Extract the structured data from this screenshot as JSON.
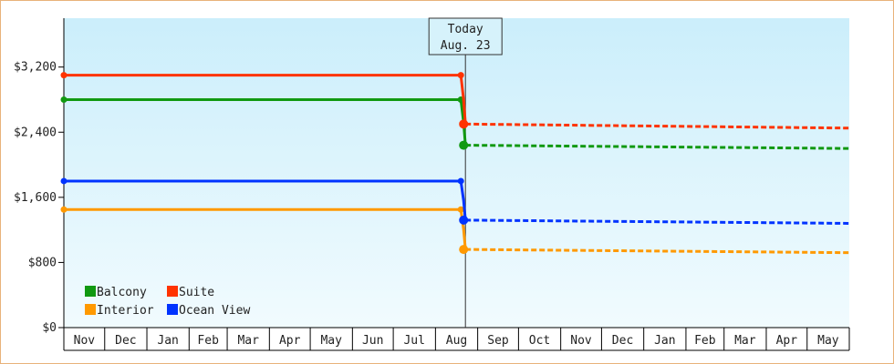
{
  "chart_data": {
    "type": "line",
    "title": "",
    "xlabel": "",
    "ylabel": "",
    "ylim": [
      0,
      3800
    ],
    "y_ticks": [
      "$0",
      "$800",
      "$1,600",
      "$2,400",
      "$3,200"
    ],
    "y_tick_values": [
      0,
      800,
      1600,
      2400,
      3200
    ],
    "x_months": [
      "Nov",
      "Dec",
      "Jan",
      "Feb",
      "Mar",
      "Apr",
      "May",
      "Jun",
      "Jul",
      "Aug",
      "Sep",
      "Oct",
      "Nov",
      "Dec",
      "Jan",
      "Feb",
      "Mar",
      "Apr",
      "May"
    ],
    "x_range": [
      "2013-11-01",
      "2015-06-01"
    ],
    "today": {
      "date": "2014-08-23",
      "line1": "Today",
      "line2": "Aug. 23"
    },
    "grid": false,
    "legend_position": "bottom-left",
    "series": [
      {
        "name": "Balcony",
        "color": "#119911",
        "history": [
          {
            "date": "2013-11-01",
            "value": 2800
          },
          {
            "date": "2014-08-23",
            "value": 2800
          }
        ],
        "forecast": [
          {
            "date": "2014-08-23",
            "value": 2240
          },
          {
            "date": "2015-06-01",
            "value": 2200
          }
        ]
      },
      {
        "name": "Suite",
        "color": "#ff3300",
        "history": [
          {
            "date": "2013-11-01",
            "value": 3100
          },
          {
            "date": "2014-08-23",
            "value": 3100
          }
        ],
        "forecast": [
          {
            "date": "2014-08-23",
            "value": 2500
          },
          {
            "date": "2015-06-01",
            "value": 2450
          }
        ]
      },
      {
        "name": "Interior",
        "color": "#ff9900",
        "history": [
          {
            "date": "2013-11-01",
            "value": 1450
          },
          {
            "date": "2014-08-23",
            "value": 1450
          }
        ],
        "forecast": [
          {
            "date": "2014-08-23",
            "value": 960
          },
          {
            "date": "2015-06-01",
            "value": 920
          }
        ]
      },
      {
        "name": "Ocean View",
        "color": "#0033ff",
        "history": [
          {
            "date": "2013-11-01",
            "value": 1800
          },
          {
            "date": "2014-08-23",
            "value": 1800
          }
        ],
        "forecast": [
          {
            "date": "2014-08-23",
            "value": 1320
          },
          {
            "date": "2015-06-01",
            "value": 1280
          }
        ]
      }
    ],
    "legend_order": [
      "Balcony",
      "Suite",
      "Interior",
      "Ocean View"
    ]
  }
}
